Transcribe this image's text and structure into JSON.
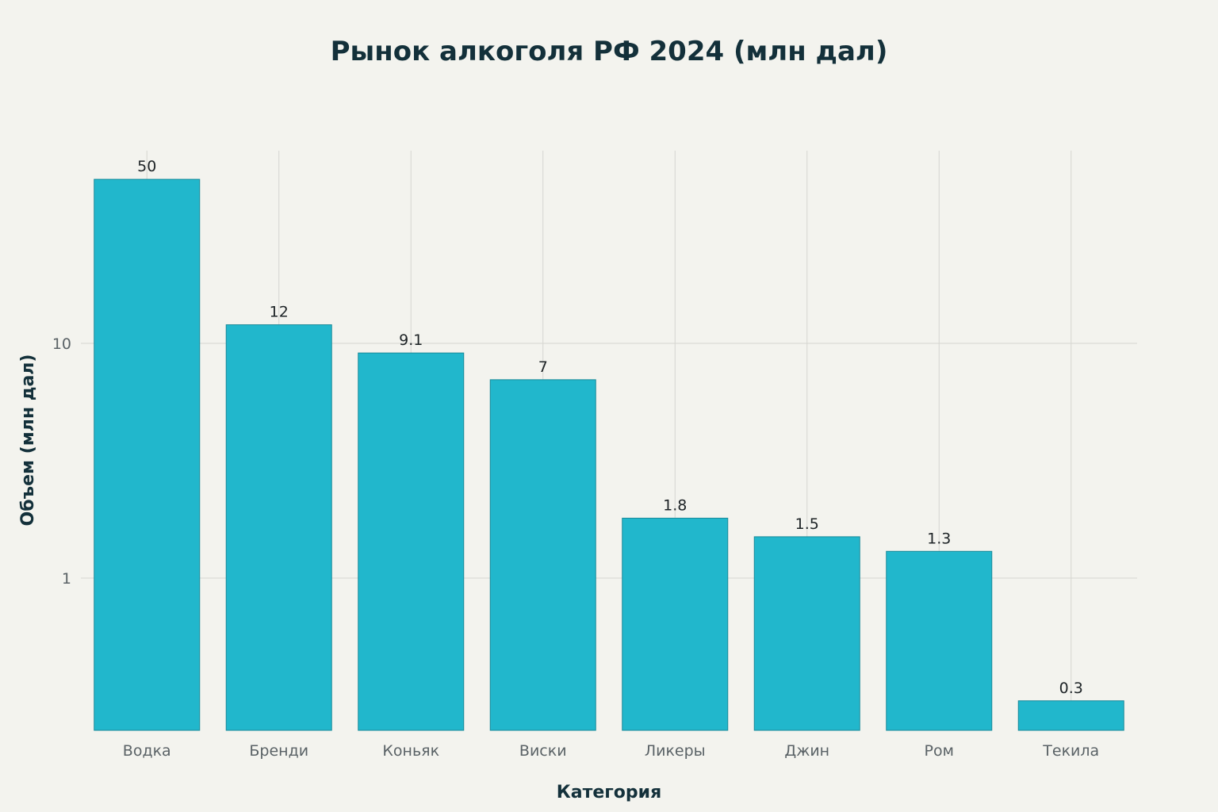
{
  "chart_data": {
    "type": "bar",
    "title": "Рынок алкоголя РФ 2024 (млн дал)",
    "xlabel": "Категория",
    "ylabel": "Объем (млн дал)",
    "y_scale": "log",
    "ylim": [
      0.22,
      70
    ],
    "y_ticks": [
      {
        "value": 1,
        "label": "1"
      },
      {
        "value": 10,
        "label": "10"
      }
    ],
    "grid": true,
    "bar_color": "#21b7cc",
    "categories": [
      "Водка",
      "Бренди",
      "Коньяк",
      "Виски",
      "Ликеры",
      "Джин",
      "Ром",
      "Текила"
    ],
    "values": [
      50,
      12,
      9.1,
      7,
      1.8,
      1.5,
      1.3,
      0.3
    ],
    "value_labels": [
      "50",
      "12",
      "9.1",
      "7",
      "1.8",
      "1.5",
      "1.3",
      "0.3"
    ]
  }
}
